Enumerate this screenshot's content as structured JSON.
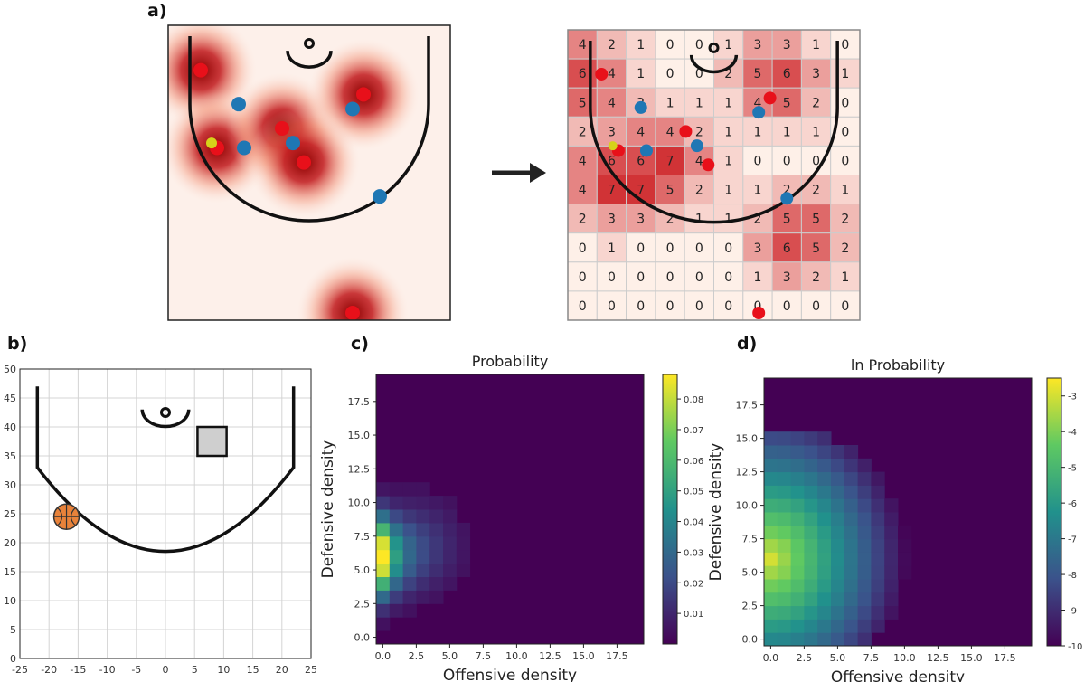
{
  "chart_data": [
    {
      "type": "heatmap",
      "panel": "a)",
      "role": "shot location density map (continuous)",
      "offense_points": [
        [
          -20,
          40
        ],
        [
          -17,
          24
        ],
        [
          -5,
          28
        ],
        [
          10,
          35
        ],
        [
          -1,
          21
        ],
        [
          8,
          -10
        ]
      ],
      "defense_points": [
        [
          -13,
          33
        ],
        [
          -12,
          24
        ],
        [
          -3,
          25
        ],
        [
          8,
          32
        ],
        [
          13,
          14
        ]
      ],
      "ball": [
        -18,
        25
      ],
      "arrow": "→"
    },
    {
      "type": "table",
      "panel": "a)",
      "role": "discretized density grid",
      "rows": [
        [
          4,
          2,
          1,
          0,
          0,
          1,
          3,
          3,
          1,
          0
        ],
        [
          6,
          4,
          1,
          0,
          0,
          2,
          5,
          6,
          3,
          1
        ],
        [
          5,
          4,
          2,
          1,
          1,
          1,
          4,
          5,
          2,
          0
        ],
        [
          2,
          3,
          4,
          4,
          2,
          1,
          1,
          1,
          1,
          0
        ],
        [
          4,
          6,
          6,
          7,
          4,
          1,
          0,
          0,
          0,
          0
        ],
        [
          4,
          7,
          7,
          5,
          2,
          1,
          1,
          2,
          2,
          1
        ],
        [
          2,
          3,
          3,
          2,
          1,
          1,
          2,
          5,
          5,
          2
        ],
        [
          0,
          1,
          0,
          0,
          0,
          0,
          3,
          6,
          5,
          2
        ],
        [
          0,
          0,
          0,
          0,
          0,
          0,
          1,
          3,
          2,
          1
        ],
        [
          0,
          0,
          0,
          0,
          0,
          0,
          0,
          0,
          0,
          0
        ]
      ],
      "vmax": 8
    },
    {
      "type": "scatter",
      "panel": "b)",
      "role": "court diagram",
      "xticks": [
        -25,
        -20,
        -15,
        -10,
        -5,
        0,
        5,
        10,
        15,
        20,
        25
      ],
      "yticks": [
        0,
        5,
        10,
        15,
        20,
        25,
        30,
        35,
        40,
        45,
        50
      ],
      "xlim": [
        -25,
        25
      ],
      "ylim": [
        0,
        50
      ],
      "grid": true,
      "ball": [
        -17,
        24.5
      ],
      "box": [
        8,
        37.5
      ]
    },
    {
      "type": "heatmap",
      "panel": "c)",
      "title": "Probability",
      "xlabel": "Offensive density",
      "ylabel": "Defensive density",
      "xticks": [
        "0.0",
        "2.5",
        "5.0",
        "7.5",
        "10.0",
        "12.5",
        "15.0",
        "17.5"
      ],
      "yticks": [
        "0.0",
        "2.5",
        "5.0",
        "7.5",
        "10.0",
        "12.5",
        "15.0",
        "17.5"
      ],
      "xlim": [
        -0.5,
        19.5
      ],
      "ylim": [
        -0.5,
        19.5
      ],
      "colorbar_ticks": [
        "0.08",
        "0.07",
        "0.06",
        "0.05",
        "0.04",
        "0.03",
        "0.02",
        "0.01"
      ],
      "colorbar_range": [
        0,
        0.088
      ],
      "approx_peak": {
        "x": 0,
        "y": 6,
        "value": 0.088
      }
    },
    {
      "type": "heatmap",
      "panel": "d)",
      "title": "ln Probability",
      "xlabel": "Offensive density",
      "ylabel": "Defensive density",
      "xticks": [
        "0.0",
        "2.5",
        "5.0",
        "7.5",
        "10.0",
        "12.5",
        "15.0",
        "17.5"
      ],
      "yticks": [
        "0.0",
        "2.5",
        "5.0",
        "7.5",
        "10.0",
        "12.5",
        "15.0",
        "17.5"
      ],
      "xlim": [
        -0.5,
        19.5
      ],
      "ylim": [
        -0.5,
        19.5
      ],
      "colorbar_ticks": [
        "-3",
        "-4",
        "-5",
        "-6",
        "-7",
        "-8",
        "-9",
        "-10"
      ],
      "colorbar_range": [
        -10,
        -2.5
      ]
    }
  ]
}
